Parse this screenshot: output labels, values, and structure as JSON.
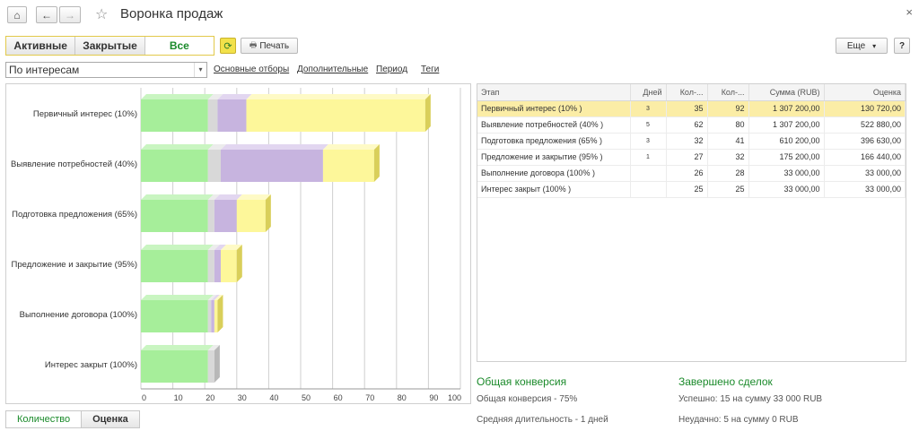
{
  "window": {
    "title": "Воронка продаж",
    "close": "×"
  },
  "nav": {
    "home": "⌂",
    "back": "←",
    "forward": "→",
    "star": "☆"
  },
  "segments": [
    "Активные",
    "Закрытые",
    "Все"
  ],
  "toolbar": {
    "refresh": "⟳",
    "print_icon": "🖶",
    "print": "Печать",
    "more": "Еще",
    "more_arrow": "▾",
    "help": "?"
  },
  "filter": {
    "value": "По интересам",
    "arrow": "▾"
  },
  "links": [
    "Основные отборы",
    "Дополнительные",
    "Период",
    "Теги"
  ],
  "table": {
    "columns": [
      "Этап",
      "Дней",
      "Кол-...",
      "Кол-...",
      "Сумма (RUB)",
      "Оценка"
    ],
    "rows": [
      [
        "Первичный интерес (10% )",
        "3",
        "35",
        "92",
        "1 307 200,00",
        "130 720,00"
      ],
      [
        "Выявление потребностей (40% )",
        "5",
        "62",
        "80",
        "1 307 200,00",
        "522 880,00"
      ],
      [
        "Подготовка предложения (65% )",
        "3",
        "32",
        "41",
        "610 200,00",
        "396 630,00"
      ],
      [
        "Предложение и закрытие (95% )",
        "1",
        "27",
        "32",
        "175 200,00",
        "166 440,00"
      ],
      [
        "Выполнение договора (100% )",
        "",
        "26",
        "28",
        "33 000,00",
        "33 000,00"
      ],
      [
        "Интерес закрыт (100% )",
        "",
        "25",
        "25",
        "33 000,00",
        "33 000,00"
      ]
    ]
  },
  "conversion": {
    "title": "Общая конверсия",
    "line1": "Общая конверсия - 75%",
    "line2": "Средняя длительность - 1 дней"
  },
  "deals": {
    "title": "Завершено сделок",
    "line1": "Успешно: 15 на сумму 33 000 RUB",
    "line2": "Неудачно: 5 на сумму 0 RUB"
  },
  "bottom_tabs": [
    "Количество",
    "Оценка"
  ],
  "chart_data": {
    "type": "bar",
    "orientation": "horizontal",
    "stacked": true,
    "categories": [
      "Первичный интерес (10%)",
      "Выявление потребностей (40%)",
      "Подготовка предложения (65%)",
      "Предложение и закрытие (95%)",
      "Выполнение договора (100%)",
      "Интерес закрыт (100%)"
    ],
    "series": [
      {
        "color": "#a6ee9a",
        "values": [
          21,
          21,
          21,
          21,
          21,
          21
        ]
      },
      {
        "color": "#d8d8d8",
        "values": [
          3,
          4,
          2,
          2,
          1,
          2
        ]
      },
      {
        "color": "#c7b4df",
        "values": [
          9,
          32,
          7,
          2,
          1,
          0
        ]
      },
      {
        "color": "#fdf79a",
        "values": [
          56,
          16,
          9,
          5,
          1,
          0
        ]
      }
    ],
    "xlim": [
      0,
      100
    ],
    "xticks": [
      0,
      10,
      20,
      30,
      40,
      50,
      60,
      70,
      80,
      90,
      100
    ],
    "grid": true
  }
}
